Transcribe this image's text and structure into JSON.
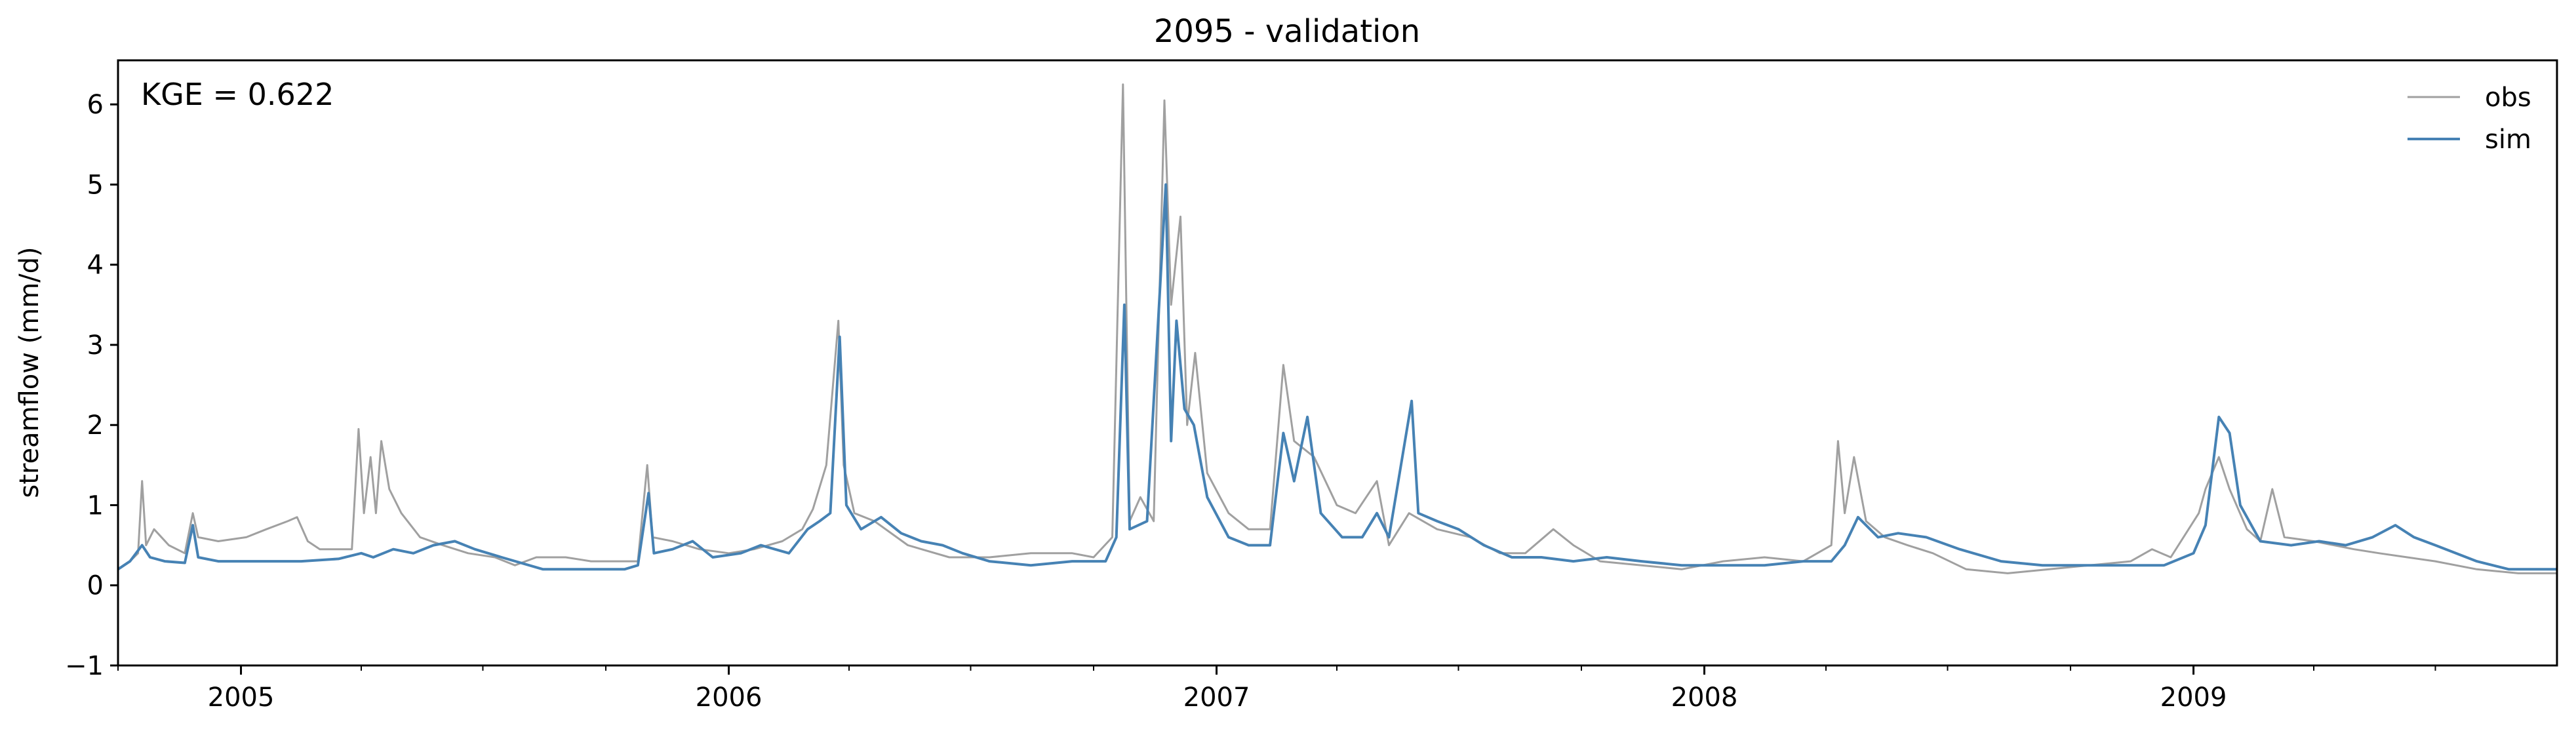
{
  "chart_data": {
    "type": "line",
    "title": "2095 - validation",
    "xlabel": "",
    "ylabel": "streamflow (mm/d)",
    "annotation": "KGE = 0.622",
    "xlim": [
      "2004-10-01",
      "2009-09-30"
    ],
    "ylim": [
      -1,
      6.55
    ],
    "yticks": [
      -1,
      0,
      1,
      2,
      3,
      4,
      5,
      6
    ],
    "xticks": [
      {
        "date": "2005-01-01",
        "label": "2005"
      },
      {
        "date": "2006-01-01",
        "label": "2006"
      },
      {
        "date": "2007-01-01",
        "label": "2007"
      },
      {
        "date": "2008-01-01",
        "label": "2008"
      },
      {
        "date": "2009-01-01",
        "label": "2009"
      }
    ],
    "grid": false,
    "legend_position": "top-right",
    "series": [
      {
        "name": "obs",
        "color": "#a0a0a0",
        "points": [
          [
            "2004-10-01",
            0.2
          ],
          [
            "2004-10-10",
            0.3
          ],
          [
            "2004-10-16",
            0.4
          ],
          [
            "2004-10-19",
            1.3
          ],
          [
            "2004-10-22",
            0.5
          ],
          [
            "2004-10-28",
            0.7
          ],
          [
            "2004-11-08",
            0.5
          ],
          [
            "2004-11-20",
            0.4
          ],
          [
            "2004-11-26",
            0.9
          ],
          [
            "2004-11-30",
            0.6
          ],
          [
            "2004-12-15",
            0.55
          ],
          [
            "2005-01-05",
            0.6
          ],
          [
            "2005-01-20",
            0.7
          ],
          [
            "2005-02-05",
            0.8
          ],
          [
            "2005-02-12",
            0.85
          ],
          [
            "2005-02-20",
            0.55
          ],
          [
            "2005-03-01",
            0.45
          ],
          [
            "2005-03-15",
            0.45
          ],
          [
            "2005-03-25",
            0.45
          ],
          [
            "2005-03-30",
            1.95
          ],
          [
            "2005-04-03",
            0.9
          ],
          [
            "2005-04-08",
            1.6
          ],
          [
            "2005-04-12",
            0.9
          ],
          [
            "2005-04-16",
            1.8
          ],
          [
            "2005-04-22",
            1.2
          ],
          [
            "2005-05-01",
            0.9
          ],
          [
            "2005-05-15",
            0.6
          ],
          [
            "2005-06-01",
            0.5
          ],
          [
            "2005-06-20",
            0.4
          ],
          [
            "2005-07-10",
            0.35
          ],
          [
            "2005-07-25",
            0.25
          ],
          [
            "2005-08-10",
            0.35
          ],
          [
            "2005-09-01",
            0.35
          ],
          [
            "2005-09-20",
            0.3
          ],
          [
            "2005-10-10",
            0.3
          ],
          [
            "2005-10-25",
            0.3
          ],
          [
            "2005-11-01",
            1.5
          ],
          [
            "2005-11-05",
            0.6
          ],
          [
            "2005-11-20",
            0.55
          ],
          [
            "2005-12-10",
            0.45
          ],
          [
            "2006-01-01",
            0.4
          ],
          [
            "2006-01-20",
            0.45
          ],
          [
            "2006-02-10",
            0.55
          ],
          [
            "2006-02-25",
            0.7
          ],
          [
            "2006-03-05",
            0.95
          ],
          [
            "2006-03-15",
            1.5
          ],
          [
            "2006-03-24",
            3.3
          ],
          [
            "2006-03-28",
            1.5
          ],
          [
            "2006-04-05",
            0.9
          ],
          [
            "2006-04-20",
            0.8
          ],
          [
            "2006-05-15",
            0.5
          ],
          [
            "2006-06-15",
            0.35
          ],
          [
            "2006-07-15",
            0.35
          ],
          [
            "2006-08-15",
            0.4
          ],
          [
            "2006-09-15",
            0.4
          ],
          [
            "2006-10-01",
            0.35
          ],
          [
            "2006-10-15",
            0.6
          ],
          [
            "2006-10-23",
            6.25
          ],
          [
            "2006-10-28",
            0.8
          ],
          [
            "2006-11-05",
            1.1
          ],
          [
            "2006-11-15",
            0.8
          ],
          [
            "2006-11-23",
            6.05
          ],
          [
            "2006-11-28",
            3.5
          ],
          [
            "2006-12-05",
            4.6
          ],
          [
            "2006-12-10",
            2.0
          ],
          [
            "2006-12-16",
            2.9
          ],
          [
            "2006-12-25",
            1.4
          ],
          [
            "2007-01-10",
            0.9
          ],
          [
            "2007-01-25",
            0.7
          ],
          [
            "2007-02-10",
            0.7
          ],
          [
            "2007-02-20",
            2.75
          ],
          [
            "2007-02-28",
            1.8
          ],
          [
            "2007-03-15",
            1.6
          ],
          [
            "2007-04-01",
            1.0
          ],
          [
            "2007-04-15",
            0.9
          ],
          [
            "2007-05-01",
            1.3
          ],
          [
            "2007-05-10",
            0.5
          ],
          [
            "2007-05-25",
            0.9
          ],
          [
            "2007-06-15",
            0.7
          ],
          [
            "2007-07-10",
            0.6
          ],
          [
            "2007-08-01",
            0.4
          ],
          [
            "2007-08-20",
            0.4
          ],
          [
            "2007-09-10",
            0.7
          ],
          [
            "2007-09-25",
            0.5
          ],
          [
            "2007-10-15",
            0.3
          ],
          [
            "2007-11-15",
            0.25
          ],
          [
            "2007-12-15",
            0.2
          ],
          [
            "2008-01-15",
            0.3
          ],
          [
            "2008-02-15",
            0.35
          ],
          [
            "2008-03-15",
            0.3
          ],
          [
            "2008-04-05",
            0.5
          ],
          [
            "2008-04-10",
            1.8
          ],
          [
            "2008-04-15",
            0.9
          ],
          [
            "2008-04-22",
            1.6
          ],
          [
            "2008-05-01",
            0.8
          ],
          [
            "2008-05-15",
            0.6
          ],
          [
            "2008-06-01",
            0.5
          ],
          [
            "2008-06-20",
            0.4
          ],
          [
            "2008-07-15",
            0.2
          ],
          [
            "2008-08-15",
            0.15
          ],
          [
            "2008-09-15",
            0.2
          ],
          [
            "2008-10-15",
            0.25
          ],
          [
            "2008-11-15",
            0.3
          ],
          [
            "2008-12-01",
            0.45
          ],
          [
            "2008-12-15",
            0.35
          ],
          [
            "2009-01-05",
            0.9
          ],
          [
            "2009-01-10",
            1.2
          ],
          [
            "2009-01-20",
            1.6
          ],
          [
            "2009-01-28",
            1.2
          ],
          [
            "2009-02-10",
            0.7
          ],
          [
            "2009-02-20",
            0.55
          ],
          [
            "2009-03-01",
            1.2
          ],
          [
            "2009-03-10",
            0.6
          ],
          [
            "2009-04-01",
            0.55
          ],
          [
            "2009-05-01",
            0.45
          ],
          [
            "2009-05-20",
            0.4
          ],
          [
            "2009-06-10",
            0.35
          ],
          [
            "2009-07-01",
            0.3
          ],
          [
            "2009-08-01",
            0.2
          ],
          [
            "2009-09-01",
            0.15
          ],
          [
            "2009-09-30",
            0.15
          ]
        ]
      },
      {
        "name": "sim",
        "color": "#4682b4",
        "points": [
          [
            "2004-10-01",
            0.2
          ],
          [
            "2004-10-10",
            0.3
          ],
          [
            "2004-10-19",
            0.5
          ],
          [
            "2004-10-25",
            0.35
          ],
          [
            "2004-11-05",
            0.3
          ],
          [
            "2004-11-20",
            0.28
          ],
          [
            "2004-11-26",
            0.75
          ],
          [
            "2004-11-30",
            0.35
          ],
          [
            "2004-12-15",
            0.3
          ],
          [
            "2005-01-15",
            0.3
          ],
          [
            "2005-02-15",
            0.3
          ],
          [
            "2005-03-15",
            0.33
          ],
          [
            "2005-04-01",
            0.4
          ],
          [
            "2005-04-10",
            0.35
          ],
          [
            "2005-04-25",
            0.45
          ],
          [
            "2005-05-10",
            0.4
          ],
          [
            "2005-05-25",
            0.5
          ],
          [
            "2005-06-10",
            0.55
          ],
          [
            "2005-06-25",
            0.45
          ],
          [
            "2005-07-15",
            0.35
          ],
          [
            "2005-08-15",
            0.2
          ],
          [
            "2005-09-15",
            0.2
          ],
          [
            "2005-10-15",
            0.2
          ],
          [
            "2005-10-25",
            0.25
          ],
          [
            "2005-11-02",
            1.15
          ],
          [
            "2005-11-06",
            0.4
          ],
          [
            "2005-11-20",
            0.45
          ],
          [
            "2005-12-05",
            0.55
          ],
          [
            "2005-12-20",
            0.35
          ],
          [
            "2006-01-10",
            0.4
          ],
          [
            "2006-01-25",
            0.5
          ],
          [
            "2006-02-15",
            0.4
          ],
          [
            "2006-03-01",
            0.7
          ],
          [
            "2006-03-10",
            0.8
          ],
          [
            "2006-03-18",
            0.9
          ],
          [
            "2006-03-25",
            3.1
          ],
          [
            "2006-03-30",
            1.0
          ],
          [
            "2006-04-10",
            0.7
          ],
          [
            "2006-04-25",
            0.85
          ],
          [
            "2006-05-10",
            0.65
          ],
          [
            "2006-05-25",
            0.55
          ],
          [
            "2006-06-10",
            0.5
          ],
          [
            "2006-06-25",
            0.4
          ],
          [
            "2006-07-15",
            0.3
          ],
          [
            "2006-08-15",
            0.25
          ],
          [
            "2006-09-15",
            0.3
          ],
          [
            "2006-10-10",
            0.3
          ],
          [
            "2006-10-18",
            0.6
          ],
          [
            "2006-10-24",
            3.5
          ],
          [
            "2006-10-28",
            0.7
          ],
          [
            "2006-11-10",
            0.8
          ],
          [
            "2006-11-24",
            5.0
          ],
          [
            "2006-11-28",
            1.8
          ],
          [
            "2006-12-02",
            3.3
          ],
          [
            "2006-12-08",
            2.2
          ],
          [
            "2006-12-15",
            2.0
          ],
          [
            "2006-12-25",
            1.1
          ],
          [
            "2007-01-10",
            0.6
          ],
          [
            "2007-01-25",
            0.5
          ],
          [
            "2007-02-10",
            0.5
          ],
          [
            "2007-02-20",
            1.9
          ],
          [
            "2007-02-28",
            1.3
          ],
          [
            "2007-03-10",
            2.1
          ],
          [
            "2007-03-20",
            0.9
          ],
          [
            "2007-04-05",
            0.6
          ],
          [
            "2007-04-20",
            0.6
          ],
          [
            "2007-05-01",
            0.9
          ],
          [
            "2007-05-10",
            0.6
          ],
          [
            "2007-05-27",
            2.3
          ],
          [
            "2007-06-01",
            0.9
          ],
          [
            "2007-06-15",
            0.8
          ],
          [
            "2007-07-01",
            0.7
          ],
          [
            "2007-07-20",
            0.5
          ],
          [
            "2007-08-10",
            0.35
          ],
          [
            "2007-09-01",
            0.35
          ],
          [
            "2007-09-25",
            0.3
          ],
          [
            "2007-10-20",
            0.35
          ],
          [
            "2007-11-15",
            0.3
          ],
          [
            "2007-12-15",
            0.25
          ],
          [
            "2008-01-15",
            0.25
          ],
          [
            "2008-02-15",
            0.25
          ],
          [
            "2008-03-15",
            0.3
          ],
          [
            "2008-04-05",
            0.3
          ],
          [
            "2008-04-15",
            0.5
          ],
          [
            "2008-04-25",
            0.85
          ],
          [
            "2008-05-10",
            0.6
          ],
          [
            "2008-05-25",
            0.65
          ],
          [
            "2008-06-15",
            0.6
          ],
          [
            "2008-07-10",
            0.45
          ],
          [
            "2008-08-10",
            0.3
          ],
          [
            "2008-09-10",
            0.25
          ],
          [
            "2008-10-10",
            0.25
          ],
          [
            "2008-11-10",
            0.25
          ],
          [
            "2008-12-10",
            0.25
          ],
          [
            "2009-01-01",
            0.4
          ],
          [
            "2009-01-10",
            0.75
          ],
          [
            "2009-01-20",
            2.1
          ],
          [
            "2009-01-28",
            1.9
          ],
          [
            "2009-02-05",
            1.0
          ],
          [
            "2009-02-20",
            0.55
          ],
          [
            "2009-03-15",
            0.5
          ],
          [
            "2009-04-05",
            0.55
          ],
          [
            "2009-04-25",
            0.5
          ],
          [
            "2009-05-15",
            0.6
          ],
          [
            "2009-06-01",
            0.75
          ],
          [
            "2009-06-15",
            0.6
          ],
          [
            "2009-07-01",
            0.5
          ],
          [
            "2009-08-01",
            0.3
          ],
          [
            "2009-08-25",
            0.2
          ],
          [
            "2009-09-30",
            0.2
          ]
        ]
      }
    ]
  }
}
